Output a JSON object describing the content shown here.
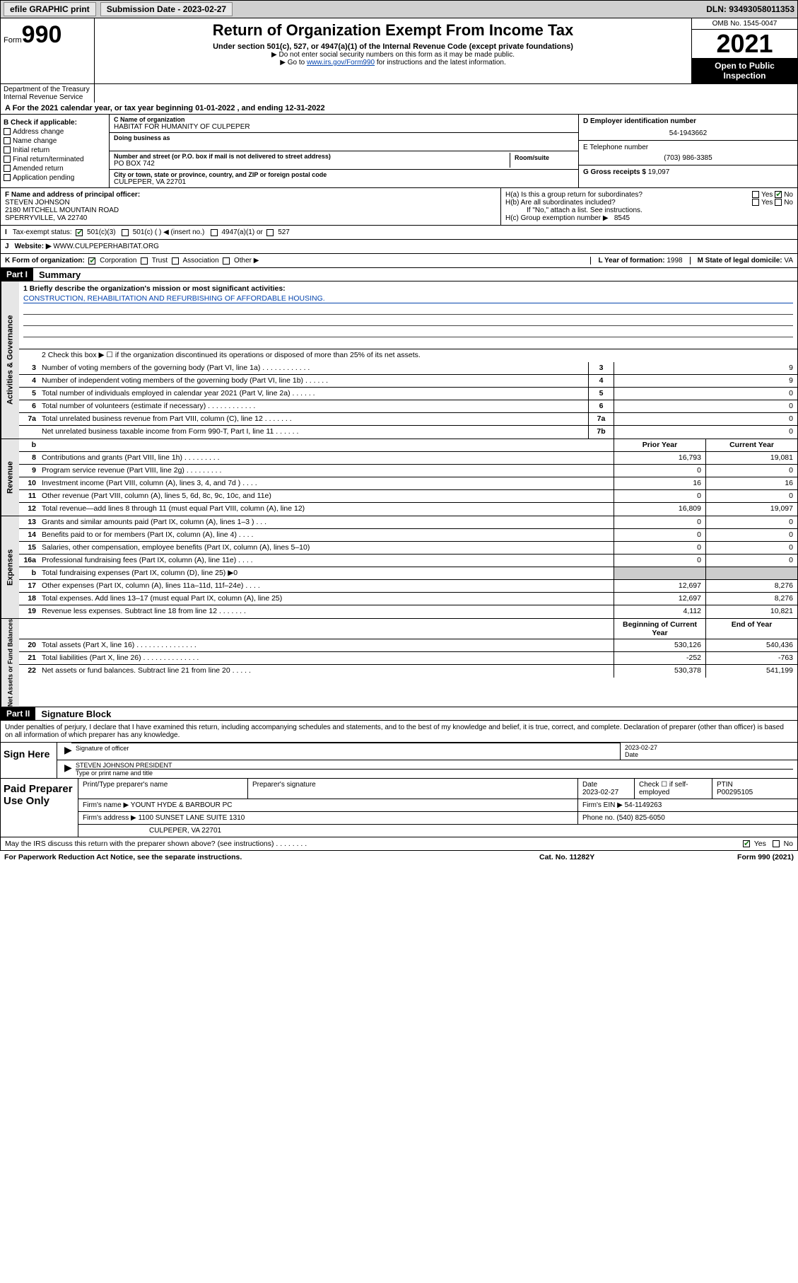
{
  "topbar": {
    "efile": "efile GRAPHIC print",
    "submission_label": "Submission Date - 2023-02-27",
    "dln": "DLN: 93493058011353"
  },
  "header": {
    "form_prefix": "Form",
    "form_number": "990",
    "title": "Return of Organization Exempt From Income Tax",
    "subtitle": "Under section 501(c), 527, or 4947(a)(1) of the Internal Revenue Code (except private foundations)",
    "note1": "▶ Do not enter social security numbers on this form as it may be made public.",
    "note2_pre": "▶ Go to ",
    "note2_link": "www.irs.gov/Form990",
    "note2_post": " for instructions and the latest information.",
    "omb": "OMB No. 1545-0047",
    "year": "2021",
    "open_public": "Open to Public Inspection",
    "dept": "Department of the Treasury Internal Revenue Service"
  },
  "row_a": "A For the 2021 calendar year, or tax year beginning 01-01-2022   , and ending 12-31-2022",
  "col_b": {
    "title": "B Check if applicable:",
    "items": [
      "Address change",
      "Name change",
      "Initial return",
      "Final return/terminated",
      "Amended return",
      "Application pending"
    ]
  },
  "org": {
    "name_label": "C Name of organization",
    "name": "HABITAT FOR HUMANITY OF CULPEPER",
    "dba_label": "Doing business as",
    "addr_label": "Number and street (or P.O. box if mail is not delivered to street address)",
    "room_label": "Room/suite",
    "addr": "PO BOX 742",
    "city_label": "City or town, state or province, country, and ZIP or foreign postal code",
    "city": "CULPEPER, VA  22701"
  },
  "right": {
    "ein_label": "D Employer identification number",
    "ein": "54-1943662",
    "phone_label": "E Telephone number",
    "phone": "(703) 986-3385",
    "gross_label": "G Gross receipts $",
    "gross": "19,097"
  },
  "officer": {
    "label": "F  Name and address of principal officer:",
    "name": "STEVEN JOHNSON",
    "addr1": "2180 MITCHELL MOUNTAIN ROAD",
    "addr2": "SPERRYVILLE, VA  22740"
  },
  "h": {
    "a": "H(a)  Is this a group return for subordinates?",
    "a_yes": "Yes",
    "a_no": "No",
    "b": "H(b)  Are all subordinates included?",
    "b_note": "If \"No,\" attach a list. See instructions.",
    "c": "H(c)  Group exemption number ▶",
    "c_val": "8545"
  },
  "tax_exempt": {
    "label": "Tax-exempt status:",
    "opt1": "501(c)(3)",
    "opt2": "501(c) (  ) ◀ (insert no.)",
    "opt3": "4947(a)(1) or",
    "opt4": "527"
  },
  "website": {
    "label": "Website: ▶",
    "val": "WWW.CULPEPERHABITAT.ORG"
  },
  "k_line": {
    "label": "K Form of organization:",
    "opts": [
      "Corporation",
      "Trust",
      "Association",
      "Other ▶"
    ],
    "l_label": "L Year of formation:",
    "l_val": "1998",
    "m_label": "M State of legal domicile:",
    "m_val": "VA"
  },
  "part1": {
    "hdr": "Part I",
    "title": "Summary"
  },
  "mission": {
    "q": "1  Briefly describe the organization's mission or most significant activities:",
    "text": "CONSTRUCTION, REHABILITATION AND REFURBISHING OF AFFORDABLE HOUSING."
  },
  "line2": "2   Check this box ▶ ☐  if the organization discontinued its operations or disposed of more than 25% of its net assets.",
  "gov_rows": [
    {
      "n": "3",
      "d": "Number of voting members of the governing body (Part VI, line 1a)  .  .  .  .  .  .  .  .  .  .  .  .",
      "box": "3",
      "v": "9"
    },
    {
      "n": "4",
      "d": "Number of independent voting members of the governing body (Part VI, line 1b)  .  .  .  .  .  .",
      "box": "4",
      "v": "9"
    },
    {
      "n": "5",
      "d": "Total number of individuals employed in calendar year 2021 (Part V, line 2a)  .  .  .  .  .  .",
      "box": "5",
      "v": "0"
    },
    {
      "n": "6",
      "d": "Total number of volunteers (estimate if necessary)  .  .  .  .  .  .  .  .  .  .  .  .",
      "box": "6",
      "v": "0"
    },
    {
      "n": "7a",
      "d": "Total unrelated business revenue from Part VIII, column (C), line 12  .  .  .  .  .  .  .",
      "box": "7a",
      "v": "0"
    },
    {
      "n": "",
      "d": "Net unrelated business taxable income from Form 990-T, Part I, line 11  .  .  .  .  .  .",
      "box": "7b",
      "v": "0"
    }
  ],
  "col_hdrs": {
    "prior": "Prior Year",
    "current": "Current Year"
  },
  "rev_rows": [
    {
      "n": "8",
      "d": "Contributions and grants (Part VIII, line 1h)  .  .  .  .  .  .  .  .  .",
      "p": "16,793",
      "c": "19,081"
    },
    {
      "n": "9",
      "d": "Program service revenue (Part VIII, line 2g)  .  .  .  .  .  .  .  .  .",
      "p": "0",
      "c": "0"
    },
    {
      "n": "10",
      "d": "Investment income (Part VIII, column (A), lines 3, 4, and 7d )  .  .  .  .",
      "p": "16",
      "c": "16"
    },
    {
      "n": "11",
      "d": "Other revenue (Part VIII, column (A), lines 5, 6d, 8c, 9c, 10c, and 11e)",
      "p": "0",
      "c": "0"
    },
    {
      "n": "12",
      "d": "Total revenue—add lines 8 through 11 (must equal Part VIII, column (A), line 12)",
      "p": "16,809",
      "c": "19,097"
    }
  ],
  "exp_rows": [
    {
      "n": "13",
      "d": "Grants and similar amounts paid (Part IX, column (A), lines 1–3 )  .  .  .",
      "p": "0",
      "c": "0"
    },
    {
      "n": "14",
      "d": "Benefits paid to or for members (Part IX, column (A), line 4)  .  .  .  .",
      "p": "0",
      "c": "0"
    },
    {
      "n": "15",
      "d": "Salaries, other compensation, employee benefits (Part IX, column (A), lines 5–10)",
      "p": "0",
      "c": "0"
    },
    {
      "n": "16a",
      "d": "Professional fundraising fees (Part IX, column (A), line 11e)  .  .  .  .",
      "p": "0",
      "c": "0"
    },
    {
      "n": "b",
      "d": "Total fundraising expenses (Part IX, column (D), line 25) ▶0",
      "p": "",
      "c": "",
      "shade": true
    },
    {
      "n": "17",
      "d": "Other expenses (Part IX, column (A), lines 11a–11d, 11f–24e)  .  .  .  .",
      "p": "12,697",
      "c": "8,276"
    },
    {
      "n": "18",
      "d": "Total expenses. Add lines 13–17 (must equal Part IX, column (A), line 25)",
      "p": "12,697",
      "c": "8,276"
    },
    {
      "n": "19",
      "d": "Revenue less expenses. Subtract line 18 from line 12  .  .  .  .  .  .  .",
      "p": "4,112",
      "c": "10,821"
    }
  ],
  "net_hdr": {
    "b": "Beginning of Current Year",
    "e": "End of Year"
  },
  "net_rows": [
    {
      "n": "20",
      "d": "Total assets (Part X, line 16)  .  .  .  .  .  .  .  .  .  .  .  .  .  .  .",
      "p": "530,126",
      "c": "540,436"
    },
    {
      "n": "21",
      "d": "Total liabilities (Part X, line 26)  .  .  .  .  .  .  .  .  .  .  .  .  .  .",
      "p": "-252",
      "c": "-763"
    },
    {
      "n": "22",
      "d": "Net assets or fund balances. Subtract line 21 from line 20  .  .  .  .  .",
      "p": "530,378",
      "c": "541,199"
    }
  ],
  "part2": {
    "hdr": "Part II",
    "title": "Signature Block"
  },
  "sig": {
    "penalty": "Under penalties of perjury, I declare that I have examined this return, including accompanying schedules and statements, and to the best of my knowledge and belief, it is true, correct, and complete. Declaration of preparer (other than officer) is based on all information of which preparer has any knowledge.",
    "sign_here": "Sign Here",
    "sig_officer": "Signature of officer",
    "date_label": "Date",
    "date": "2023-02-27",
    "name": "STEVEN JOHNSON  PRESIDENT",
    "name_label": "Type or print name and title"
  },
  "paid": {
    "title": "Paid Preparer Use Only",
    "r1": {
      "c1": "Print/Type preparer's name",
      "c2": "Preparer's signature",
      "c3_lbl": "Date",
      "c3": "2023-02-27",
      "c4": "Check ☐ if self-employed",
      "c5_lbl": "PTIN",
      "c5": "P00295105"
    },
    "r2": {
      "lbl": "Firm's name    ▶",
      "val": "YOUNT HYDE & BARBOUR PC",
      "ein_lbl": "Firm's EIN ▶",
      "ein": "54-1149263"
    },
    "r3": {
      "lbl": "Firm's address ▶",
      "val": "1100 SUNSET LANE SUITE 1310",
      "ph_lbl": "Phone no.",
      "ph": "(540) 825-6050"
    },
    "r4": {
      "val": "CULPEPER, VA  22701"
    }
  },
  "discuss": {
    "q": "May the IRS discuss this return with the preparer shown above? (see instructions)  .  .  .  .  .  .  .  .",
    "yes": "Yes",
    "no": "No"
  },
  "footer": {
    "left": "For Paperwork Reduction Act Notice, see the separate instructions.",
    "mid": "Cat. No. 11282Y",
    "right": "Form 990 (2021)"
  },
  "vert": {
    "gov": "Activities & Governance",
    "rev": "Revenue",
    "exp": "Expenses",
    "net": "Net Assets or Fund Balances"
  }
}
